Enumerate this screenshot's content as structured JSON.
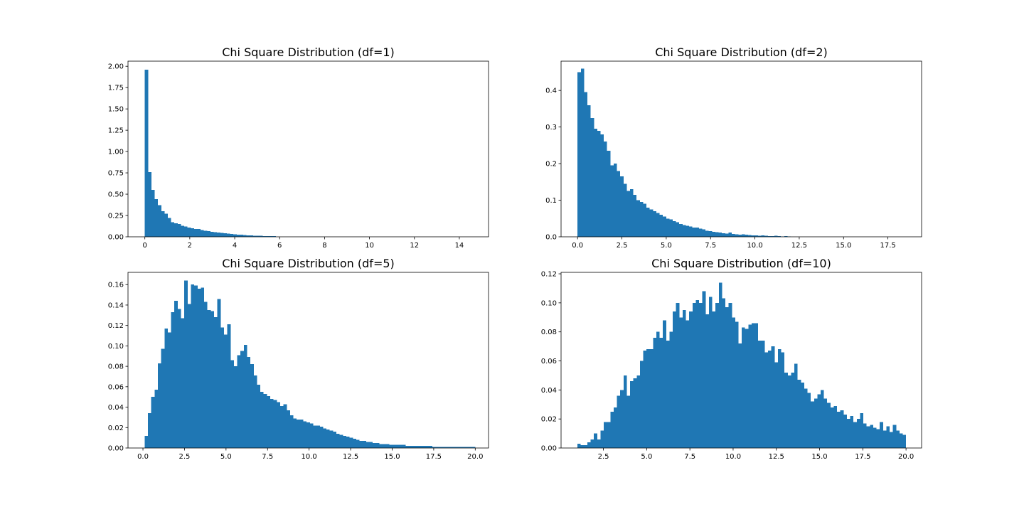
{
  "figure": {
    "background": "#ffffff",
    "bar_color": "#1f77b4",
    "axis_color": "#000000"
  },
  "chart_data": [
    {
      "type": "bar",
      "subtype": "histogram",
      "title": "Chi Square Distribution (df=1)",
      "xlabel": "",
      "ylabel": "",
      "xlim": [
        -0.75,
        15.3
      ],
      "ylim": [
        0,
        2.06
      ],
      "xticks": [
        0,
        2,
        4,
        6,
        8,
        10,
        12,
        14
      ],
      "xtick_labels": [
        "0",
        "2",
        "4",
        "6",
        "8",
        "10",
        "12",
        "14"
      ],
      "yticks": [
        0,
        0.25,
        0.5,
        0.75,
        1.0,
        1.25,
        1.5,
        1.75,
        2.0
      ],
      "ytick_labels": [
        "0.00",
        "0.25",
        "0.50",
        "0.75",
        "1.00",
        "1.25",
        "1.50",
        "1.75",
        "2.00"
      ],
      "grid": false,
      "bin_start": 0.0,
      "bin_width": 0.146,
      "values": [
        1.96,
        0.76,
        0.55,
        0.44,
        0.37,
        0.3,
        0.27,
        0.22,
        0.17,
        0.16,
        0.15,
        0.13,
        0.12,
        0.11,
        0.1,
        0.09,
        0.09,
        0.08,
        0.07,
        0.065,
        0.06,
        0.055,
        0.05,
        0.045,
        0.04,
        0.036,
        0.032,
        0.029,
        0.026,
        0.023,
        0.02,
        0.018,
        0.016,
        0.014,
        0.012,
        0.011,
        0.01,
        0.009,
        0.008,
        0.007
      ]
    },
    {
      "type": "bar",
      "subtype": "histogram",
      "title": "Chi Square Distribution (df=2)",
      "xlabel": "",
      "ylabel": "",
      "xlim": [
        -0.93,
        19.4
      ],
      "ylim": [
        0,
        0.48
      ],
      "xticks": [
        0,
        2.5,
        5.0,
        7.5,
        10.0,
        12.5,
        15.0,
        17.5
      ],
      "xtick_labels": [
        "0.0",
        "2.5",
        "5.0",
        "7.5",
        "10.0",
        "12.5",
        "15.0",
        "17.5"
      ],
      "yticks": [
        0,
        0.1,
        0.2,
        0.3,
        0.4
      ],
      "ytick_labels": [
        "0.0",
        "0.1",
        "0.2",
        "0.3",
        "0.4"
      ],
      "grid": false,
      "bin_start": 0.0,
      "bin_width": 0.185,
      "values": [
        0.45,
        0.46,
        0.395,
        0.36,
        0.325,
        0.295,
        0.29,
        0.28,
        0.26,
        0.235,
        0.195,
        0.2,
        0.18,
        0.165,
        0.145,
        0.125,
        0.13,
        0.115,
        0.1,
        0.095,
        0.09,
        0.08,
        0.075,
        0.07,
        0.065,
        0.06,
        0.055,
        0.05,
        0.048,
        0.043,
        0.04,
        0.035,
        0.032,
        0.03,
        0.028,
        0.025,
        0.025,
        0.022,
        0.02,
        0.017,
        0.016,
        0.014,
        0.013,
        0.012,
        0.01,
        0.009,
        0.012,
        0.008,
        0.007,
        0.006,
        0.007,
        0.006,
        0.005,
        0.004,
        0.004,
        0.003,
        0.004,
        0.003,
        0.002,
        0.002,
        0.003,
        0.002,
        0.001,
        0.002,
        0.001
      ]
    },
    {
      "type": "bar",
      "subtype": "histogram",
      "title": "Chi Square Distribution (df=5)",
      "xlabel": "",
      "ylabel": "",
      "xlim": [
        -0.9,
        20.8
      ],
      "ylim": [
        0,
        0.172
      ],
      "xticks": [
        0,
        2.5,
        5.0,
        7.5,
        10.0,
        12.5,
        15.0,
        17.5,
        20.0
      ],
      "xtick_labels": [
        "0.0",
        "2.5",
        "5.0",
        "7.5",
        "10.0",
        "12.5",
        "15.0",
        "17.5",
        "20.0"
      ],
      "yticks": [
        0,
        0.02,
        0.04,
        0.06,
        0.08,
        0.1,
        0.12,
        0.14,
        0.16
      ],
      "ytick_labels": [
        "0.00",
        "0.02",
        "0.04",
        "0.06",
        "0.08",
        "0.10",
        "0.12",
        "0.14",
        "0.16"
      ],
      "grid": false,
      "bin_start": 0.1,
      "bin_width": 0.199,
      "values": [
        0.012,
        0.034,
        0.05,
        0.057,
        0.083,
        0.097,
        0.117,
        0.113,
        0.133,
        0.144,
        0.136,
        0.127,
        0.164,
        0.141,
        0.16,
        0.159,
        0.156,
        0.157,
        0.143,
        0.135,
        0.134,
        0.128,
        0.146,
        0.118,
        0.111,
        0.121,
        0.086,
        0.08,
        0.091,
        0.095,
        0.101,
        0.089,
        0.082,
        0.071,
        0.062,
        0.055,
        0.053,
        0.051,
        0.048,
        0.047,
        0.045,
        0.041,
        0.043,
        0.037,
        0.032,
        0.029,
        0.028,
        0.028,
        0.026,
        0.025,
        0.024,
        0.022,
        0.022,
        0.021,
        0.019,
        0.018,
        0.017,
        0.016,
        0.014,
        0.013,
        0.012,
        0.011,
        0.01,
        0.009,
        0.008,
        0.007,
        0.007,
        0.006,
        0.006,
        0.005,
        0.005,
        0.004,
        0.004,
        0.004,
        0.003,
        0.003,
        0.003,
        0.003,
        0.003,
        0.002,
        0.002,
        0.002,
        0.002,
        0.002,
        0.002,
        0.002,
        0.002,
        0.001,
        0.001,
        0.001,
        0.001,
        0.001,
        0.001,
        0.001,
        0.001,
        0.001,
        0.001,
        0.001,
        0.001,
        0.001
      ]
    },
    {
      "type": "bar",
      "subtype": "histogram",
      "title": "Chi Square Distribution (df=10)",
      "xlabel": "",
      "ylabel": "",
      "xlim": [
        0.05,
        20.9
      ],
      "ylim": [
        0,
        0.121
      ],
      "xticks": [
        2.5,
        5.0,
        7.5,
        10.0,
        12.5,
        15.0,
        17.5,
        20.0
      ],
      "xtick_labels": [
        "2.5",
        "5.0",
        "7.5",
        "10.0",
        "12.5",
        "15.0",
        "17.5",
        "20.0"
      ],
      "yticks": [
        0,
        0.02,
        0.04,
        0.06,
        0.08,
        0.1,
        0.12
      ],
      "ytick_labels": [
        "0.00",
        "0.02",
        "0.04",
        "0.06",
        "0.08",
        "0.10",
        "0.12"
      ],
      "grid": false,
      "bin_start": 1.0,
      "bin_width": 0.19,
      "values": [
        0.003,
        0.002,
        0.002,
        0.004,
        0.006,
        0.01,
        0.006,
        0.012,
        0.018,
        0.018,
        0.025,
        0.028,
        0.036,
        0.04,
        0.05,
        0.036,
        0.046,
        0.048,
        0.05,
        0.06,
        0.067,
        0.068,
        0.068,
        0.076,
        0.08,
        0.076,
        0.088,
        0.074,
        0.08,
        0.094,
        0.1,
        0.09,
        0.095,
        0.088,
        0.094,
        0.1,
        0.102,
        0.1,
        0.108,
        0.092,
        0.104,
        0.094,
        0.1,
        0.114,
        0.103,
        0.097,
        0.1,
        0.09,
        0.087,
        0.072,
        0.083,
        0.082,
        0.085,
        0.086,
        0.086,
        0.074,
        0.074,
        0.066,
        0.067,
        0.07,
        0.059,
        0.068,
        0.066,
        0.052,
        0.05,
        0.052,
        0.058,
        0.047,
        0.045,
        0.041,
        0.038,
        0.032,
        0.034,
        0.037,
        0.04,
        0.034,
        0.031,
        0.028,
        0.029,
        0.025,
        0.026,
        0.023,
        0.02,
        0.022,
        0.018,
        0.02,
        0.024,
        0.017,
        0.015,
        0.016,
        0.014,
        0.013,
        0.018,
        0.012,
        0.015,
        0.011,
        0.016,
        0.012,
        0.01,
        0.009
      ]
    }
  ]
}
